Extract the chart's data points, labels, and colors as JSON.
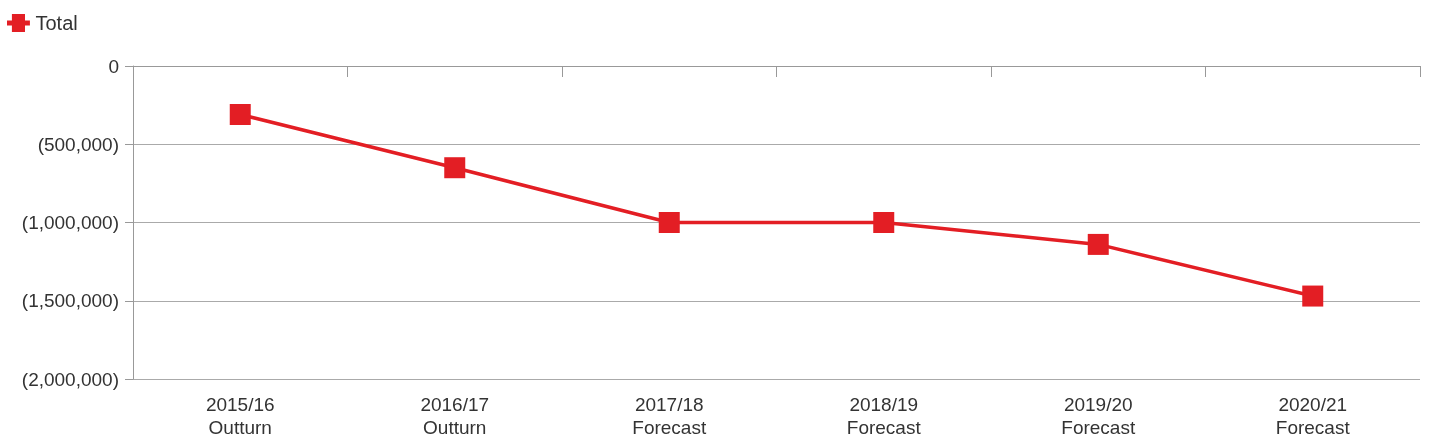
{
  "chart_data": {
    "type": "line",
    "categories": [
      "2015/16\nOutturn",
      "2016/17\nOutturn",
      "2017/18\nForecast",
      "2018/19\nForecast",
      "2019/20\nForecast",
      "2020/21\nForecast"
    ],
    "series": [
      {
        "name": "Total",
        "color": "#e31e24",
        "values": [
          -310000,
          -650000,
          -1000000,
          -1000000,
          -1140000,
          -1470000
        ]
      }
    ],
    "ylim": [
      -2000000,
      0
    ],
    "yticks": [
      {
        "value": 0,
        "label": "0"
      },
      {
        "value": -500000,
        "label": "(500,000)"
      },
      {
        "value": -1000000,
        "label": "(1,000,000)"
      },
      {
        "value": -1500000,
        "label": "(1,500,000)"
      },
      {
        "value": -2000000,
        "label": "(2,000,000)"
      }
    ],
    "grid": "y",
    "legend": "top left",
    "marker": "square",
    "line_style": "solid"
  }
}
